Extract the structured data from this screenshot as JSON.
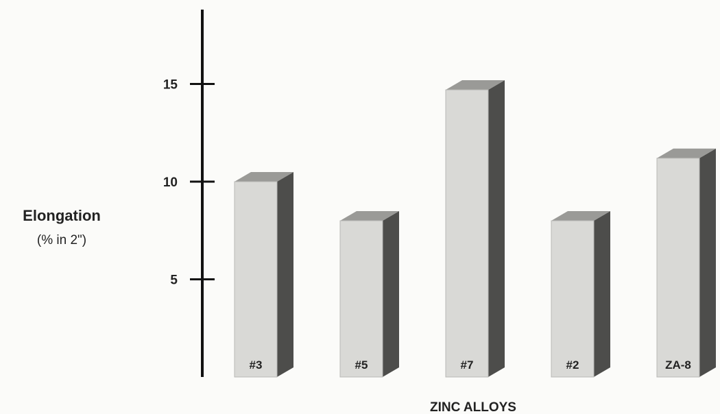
{
  "chart_data": {
    "type": "bar",
    "style": "3d",
    "categories": [
      "#3",
      "#5",
      "#7",
      "#2",
      "ZA-8"
    ],
    "values": [
      10,
      8,
      14.7,
      8,
      11.2
    ],
    "ylabel": "Elongation",
    "ylabel_unit": "(% in 2\")",
    "xlabel": "ZINC ALLOYS",
    "yticks": [
      5,
      10,
      15
    ],
    "ylim": [
      0,
      19
    ],
    "grid": false,
    "legend": "none",
    "colors": {
      "front": "#d9d9d6",
      "top": "#9a9a97",
      "side": "#4d4d4b",
      "axis": "#111111"
    }
  }
}
